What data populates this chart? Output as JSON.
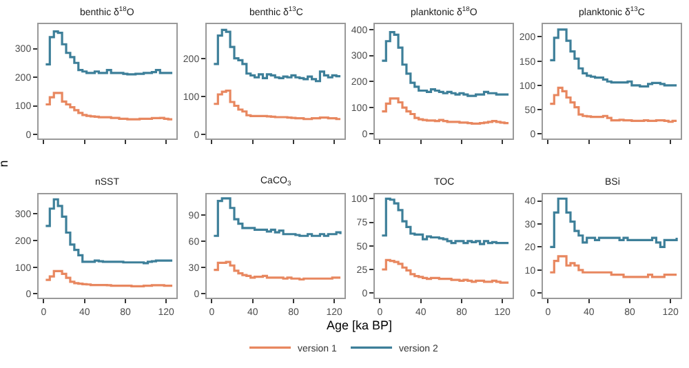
{
  "chart_data": [
    {
      "type": "step",
      "title": "benthic δ$^{18}$O",
      "ylabel": "n",
      "x": [
        2,
        6,
        10,
        14,
        18,
        22,
        26,
        30,
        34,
        38,
        42,
        46,
        50,
        54,
        58,
        62,
        66,
        70,
        74,
        78,
        82,
        86,
        90,
        94,
        98,
        102,
        106,
        110,
        114,
        118,
        122,
        126
      ],
      "xlim": [
        -5,
        130
      ],
      "xticks": [
        0,
        40,
        80,
        120
      ],
      "ylim": [
        -15,
        385
      ],
      "yticks": [
        0,
        100,
        200,
        300
      ],
      "tick_labels": "y",
      "legend": "bottom",
      "series": [
        {
          "name": "version 1",
          "color": "#e8875f",
          "values": [
            105,
            130,
            145,
            145,
            115,
            105,
            95,
            85,
            75,
            68,
            65,
            63,
            62,
            60,
            60,
            60,
            58,
            58,
            55,
            55,
            53,
            53,
            53,
            55,
            55,
            55,
            57,
            57,
            58,
            55,
            53,
            53
          ]
        },
        {
          "name": "version 2",
          "color": "#3d7f99",
          "values": [
            245,
            340,
            360,
            355,
            315,
            285,
            270,
            250,
            225,
            220,
            215,
            215,
            220,
            215,
            215,
            225,
            215,
            215,
            215,
            212,
            210,
            210,
            212,
            212,
            215,
            215,
            218,
            225,
            215,
            215,
            215,
            215
          ]
        }
      ]
    },
    {
      "type": "step",
      "title": "benthic δ$^{13}$C",
      "x": [
        2,
        6,
        10,
        14,
        18,
        22,
        26,
        30,
        34,
        38,
        42,
        46,
        50,
        54,
        58,
        62,
        66,
        70,
        74,
        78,
        82,
        86,
        90,
        94,
        98,
        102,
        106,
        110,
        114,
        118,
        122,
        126
      ],
      "xlim": [
        -5,
        130
      ],
      "xticks": [
        0,
        40,
        80,
        120
      ],
      "ylim": [
        -12,
        290
      ],
      "yticks": [
        0,
        100,
        200
      ],
      "tick_labels": "y",
      "series": [
        {
          "color": "#e8875f",
          "values": [
            80,
            105,
            112,
            115,
            85,
            75,
            65,
            60,
            50,
            48,
            48,
            48,
            48,
            47,
            46,
            45,
            45,
            45,
            44,
            43,
            42,
            42,
            40,
            40,
            42,
            42,
            44,
            44,
            42,
            42,
            40,
            40
          ]
        },
        {
          "color": "#3d7f99",
          "values": [
            185,
            260,
            275,
            270,
            230,
            200,
            195,
            185,
            160,
            155,
            150,
            158,
            148,
            158,
            155,
            150,
            148,
            152,
            150,
            155,
            150,
            148,
            145,
            152,
            145,
            140,
            165,
            155,
            150,
            155,
            153,
            153
          ]
        }
      ]
    },
    {
      "type": "step",
      "title": "planktonic δ$^{18}$O",
      "x": [
        2,
        6,
        10,
        14,
        18,
        22,
        26,
        30,
        34,
        38,
        42,
        46,
        50,
        54,
        58,
        62,
        66,
        70,
        74,
        78,
        82,
        86,
        90,
        94,
        98,
        102,
        106,
        110,
        114,
        118,
        122,
        126
      ],
      "xlim": [
        -5,
        130
      ],
      "xticks": [
        0,
        40,
        80,
        120
      ],
      "ylim": [
        -20,
        420
      ],
      "yticks": [
        0,
        100,
        200,
        300,
        400
      ],
      "tick_labels": "y",
      "series": [
        {
          "color": "#e8875f",
          "values": [
            85,
            115,
            135,
            135,
            120,
            100,
            85,
            75,
            60,
            55,
            52,
            50,
            50,
            48,
            52,
            48,
            45,
            45,
            45,
            42,
            42,
            40,
            38,
            38,
            40,
            42,
            45,
            48,
            45,
            42,
            40,
            40
          ]
        },
        {
          "color": "#3d7f99",
          "values": [
            280,
            355,
            390,
            380,
            330,
            265,
            230,
            195,
            180,
            165,
            165,
            160,
            170,
            165,
            160,
            155,
            160,
            155,
            150,
            155,
            150,
            145,
            145,
            150,
            150,
            160,
            155,
            155,
            150,
            150,
            150,
            150
          ]
        }
      ]
    },
    {
      "type": "step",
      "title": "planktonic δ$^{13}$C",
      "x": [
        2,
        6,
        10,
        14,
        18,
        22,
        26,
        30,
        34,
        38,
        42,
        46,
        50,
        54,
        58,
        62,
        66,
        70,
        74,
        78,
        82,
        86,
        90,
        94,
        98,
        102,
        106,
        110,
        114,
        118,
        122,
        126
      ],
      "xlim": [
        -5,
        130
      ],
      "xticks": [
        0,
        40,
        80,
        120
      ],
      "ylim": [
        -10,
        226
      ],
      "yticks": [
        0,
        50,
        100,
        150,
        200
      ],
      "tick_labels": "y",
      "series": [
        {
          "color": "#e8875f",
          "values": [
            62,
            80,
            95,
            88,
            75,
            65,
            55,
            40,
            37,
            36,
            35,
            35,
            35,
            37,
            33,
            28,
            28,
            29,
            28,
            28,
            27,
            27,
            27,
            28,
            27,
            27,
            28,
            28,
            27,
            25,
            27,
            27
          ]
        },
        {
          "color": "#3d7f99",
          "values": [
            152,
            198,
            215,
            215,
            192,
            170,
            155,
            135,
            125,
            120,
            118,
            116,
            116,
            112,
            108,
            106,
            106,
            106,
            106,
            108,
            100,
            100,
            98,
            98,
            103,
            105,
            105,
            103,
            100,
            100,
            100,
            100
          ]
        }
      ]
    },
    {
      "type": "step",
      "title": "nSST",
      "x": [
        2,
        6,
        10,
        14,
        18,
        22,
        26,
        30,
        34,
        38,
        42,
        46,
        50,
        54,
        58,
        62,
        66,
        70,
        74,
        78,
        82,
        86,
        90,
        94,
        98,
        102,
        106,
        110,
        114,
        118,
        122,
        126
      ],
      "xlim": [
        -5,
        130
      ],
      "xticks": [
        0,
        40,
        80,
        120
      ],
      "ylim": [
        -15,
        375
      ],
      "yticks": [
        0,
        100,
        200,
        300
      ],
      "series": [
        {
          "color": "#e8875f",
          "values": [
            52,
            65,
            85,
            85,
            75,
            60,
            45,
            40,
            38,
            36,
            35,
            33,
            33,
            33,
            33,
            32,
            30,
            30,
            30,
            30,
            30,
            28,
            28,
            28,
            30,
            30,
            32,
            32,
            32,
            30,
            30,
            30
          ]
        },
        {
          "color": "#3d7f99",
          "values": [
            255,
            320,
            355,
            330,
            290,
            230,
            185,
            165,
            145,
            120,
            120,
            120,
            125,
            122,
            120,
            120,
            120,
            120,
            120,
            118,
            118,
            118,
            118,
            118,
            115,
            120,
            122,
            125,
            125,
            125,
            125,
            125
          ]
        }
      ]
    },
    {
      "type": "step",
      "title": "CaCO$_{3}$",
      "xlabel": "Age [ka BP]",
      "x": [
        2,
        6,
        10,
        14,
        18,
        22,
        26,
        30,
        34,
        38,
        42,
        46,
        50,
        54,
        58,
        62,
        66,
        70,
        74,
        78,
        82,
        86,
        90,
        94,
        98,
        102,
        106,
        110,
        114,
        118,
        122,
        126
      ],
      "xlim": [
        -5,
        130
      ],
      "xticks": [
        0,
        40,
        80,
        120
      ],
      "ylim": [
        -5,
        114
      ],
      "yticks": [
        0,
        30,
        60,
        90
      ],
      "series": [
        {
          "color": "#e8875f",
          "values": [
            27,
            35,
            35,
            36,
            32,
            26,
            23,
            21,
            20,
            18,
            19,
            19,
            20,
            18,
            18,
            18,
            18,
            17,
            18,
            17,
            17,
            16,
            17,
            17,
            17,
            17,
            17,
            17,
            17,
            18,
            18,
            18
          ]
        },
        {
          "color": "#3d7f99",
          "values": [
            66,
            106,
            109,
            109,
            98,
            85,
            80,
            75,
            75,
            75,
            73,
            73,
            73,
            71,
            73,
            70,
            72,
            68,
            68,
            68,
            67,
            66,
            66,
            68,
            66,
            66,
            68,
            66,
            68,
            68,
            70,
            68
          ]
        }
      ]
    },
    {
      "type": "step",
      "title": "TOC",
      "x": [
        2,
        6,
        10,
        14,
        18,
        22,
        26,
        30,
        34,
        38,
        42,
        46,
        50,
        54,
        58,
        62,
        66,
        70,
        74,
        78,
        82,
        86,
        90,
        94,
        98,
        102,
        106,
        110,
        114,
        118,
        122,
        126
      ],
      "xlim": [
        -5,
        130
      ],
      "xticks": [
        0,
        40,
        80,
        120
      ],
      "ylim": [
        -5,
        105
      ],
      "yticks": [
        0,
        25,
        50,
        75,
        100
      ],
      "series": [
        {
          "color": "#e8875f",
          "values": [
            25,
            35,
            34,
            33,
            31,
            27,
            24,
            20,
            18,
            17,
            16,
            15,
            16,
            16,
            15,
            15,
            15,
            14,
            14,
            13,
            14,
            13,
            12,
            13,
            13,
            12,
            12,
            13,
            12,
            11,
            11,
            11
          ]
        },
        {
          "color": "#3d7f99",
          "values": [
            61,
            100,
            99,
            95,
            88,
            76,
            70,
            63,
            62,
            62,
            57,
            60,
            59,
            59,
            58,
            57,
            55,
            53,
            55,
            55,
            53,
            55,
            54,
            55,
            52,
            55,
            53,
            54,
            53,
            53,
            53,
            53
          ]
        }
      ]
    },
    {
      "type": "step",
      "title": "BSi",
      "x": [
        2,
        6,
        10,
        14,
        18,
        22,
        26,
        30,
        34,
        38,
        42,
        46,
        50,
        54,
        58,
        62,
        66,
        70,
        74,
        78,
        82,
        86,
        90,
        94,
        98,
        102,
        106,
        110,
        114,
        118,
        122,
        126
      ],
      "xlim": [
        -5,
        130
      ],
      "xticks": [
        0,
        40,
        80,
        120
      ],
      "ylim": [
        -2,
        43
      ],
      "yticks": [
        0,
        10,
        20,
        30,
        40
      ],
      "series": [
        {
          "color": "#e8875f",
          "values": [
            9,
            14,
            16,
            16,
            12,
            13,
            12,
            10,
            9,
            9,
            9,
            9,
            9,
            9,
            9,
            8,
            8,
            8,
            7,
            7,
            7,
            7,
            7,
            7,
            8,
            7,
            7,
            7,
            8,
            8,
            8,
            8
          ]
        },
        {
          "color": "#3d7f99",
          "values": [
            20,
            35,
            41,
            41,
            35,
            31,
            27,
            25,
            22,
            24,
            24,
            23,
            24,
            24,
            24,
            24,
            24,
            23,
            24,
            23,
            23,
            23,
            23,
            23,
            23,
            24,
            22,
            20,
            23,
            23,
            23,
            24
          ]
        }
      ]
    }
  ]
}
